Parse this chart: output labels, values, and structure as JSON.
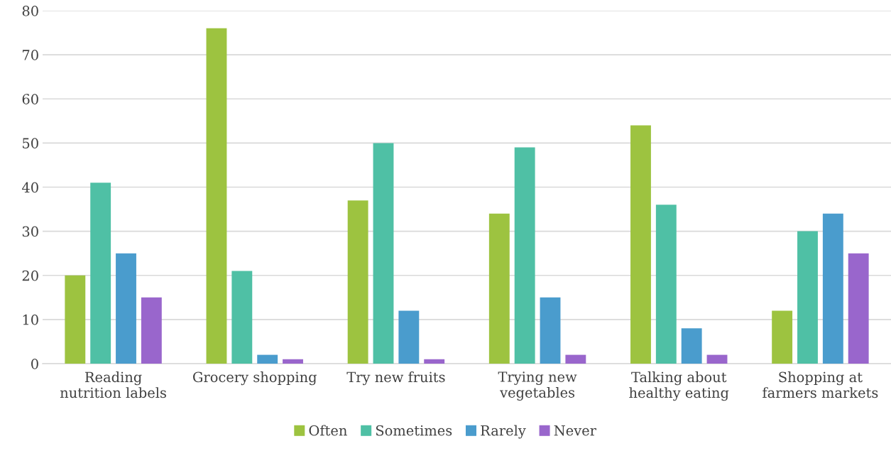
{
  "chart_data": {
    "type": "bar",
    "categories": [
      "Reading nutrition labels",
      "Grocery shopping",
      "Try new fruits",
      "Trying new vegetables",
      "Talking about healthy eating",
      "Shopping at farmers markets"
    ],
    "series": [
      {
        "name": "Often",
        "color": "#9dc340",
        "values": [
          20,
          76,
          37,
          34,
          54,
          12
        ]
      },
      {
        "name": "Sometimes",
        "color": "#4fc0a5",
        "values": [
          41,
          21,
          50,
          49,
          36,
          30
        ]
      },
      {
        "name": "Rarely",
        "color": "#4a9ccd",
        "values": [
          25,
          2,
          12,
          15,
          8,
          34
        ]
      },
      {
        "name": "Never",
        "color": "#9966cc",
        "values": [
          15,
          1,
          1,
          2,
          2,
          25
        ]
      }
    ],
    "ylim": [
      0,
      80
    ],
    "yticks": [
      0,
      10,
      20,
      30,
      40,
      50,
      60,
      70,
      80
    ],
    "grid": "y",
    "legend": "bottom"
  }
}
